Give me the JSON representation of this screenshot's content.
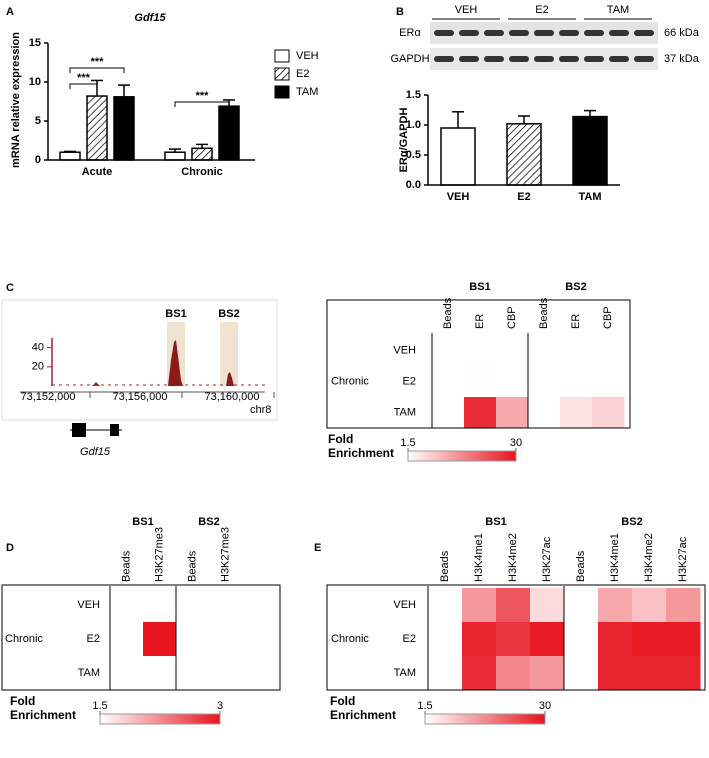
{
  "panel_labels": [
    "A",
    "B",
    "C",
    "D",
    "E"
  ],
  "chart_data": [
    {
      "type": "bar",
      "title": "Gdf15",
      "ylabel": "mRNA relative expression",
      "categories": [
        "Acute",
        "Chronic"
      ],
      "series": [
        {
          "name": "VEH",
          "color": "#ffffff",
          "values": [
            1.0,
            1.0
          ],
          "errors": [
            0.1,
            0.4
          ]
        },
        {
          "name": "E2",
          "color": "#ffffff",
          "hatch": true,
          "values": [
            8.2,
            1.5
          ],
          "errors": [
            2.0,
            0.5
          ]
        },
        {
          "name": "TAM",
          "color": "#000000",
          "values": [
            8.1,
            6.9
          ],
          "errors": [
            1.5,
            0.8
          ]
        }
      ],
      "ylim": [
        0,
        15
      ],
      "yticks": [
        0,
        5,
        10,
        15
      ],
      "annotations": [
        "***",
        "***",
        "***"
      ]
    },
    {
      "type": "bar",
      "ylabel": "ERα/GAPDH",
      "categories": [
        "VEH",
        "E2",
        "TAM"
      ],
      "values": [
        0.95,
        1.02,
        1.14
      ],
      "errors": [
        0.27,
        0.13,
        0.1
      ],
      "colors": [
        "#ffffff",
        "#ffffff",
        "#000000"
      ],
      "hatch": [
        false,
        true,
        false
      ],
      "ylim": [
        0,
        1.5
      ],
      "yticks": [
        {
          "value": 0,
          "label": "0.0"
        },
        {
          "value": 0.5,
          "label": "0.5"
        },
        {
          "value": 1,
          "label": "1.0"
        },
        {
          "value": 1.5,
          "label": "1.5"
        }
      ]
    },
    {
      "type": "heatmap",
      "groups": [
        "BS1",
        "BS2"
      ],
      "columns": [
        [
          "Beads",
          "ER",
          "CBP"
        ],
        [
          "Beads",
          "ER",
          "CBP"
        ]
      ],
      "row_group": "Chronic",
      "rows": [
        "VEH",
        "E2",
        "TAM"
      ],
      "values": [
        [
          1.5,
          1.5,
          1.5,
          1.5,
          1.5,
          1.5
        ],
        [
          1.5,
          1.7,
          1.5,
          1.5,
          1.5,
          1.5
        ],
        [
          1.5,
          27,
          12,
          1.5,
          5,
          7
        ]
      ],
      "colorbar": {
        "title": "Fold Enrichment",
        "lim": [
          1.5,
          30
        ],
        "ticks": [
          1.5,
          30
        ]
      }
    },
    {
      "type": "heatmap",
      "groups": [
        "BS1",
        "BS2"
      ],
      "columns": [
        [
          "Beads",
          "H3K27me3"
        ],
        [
          "Beads",
          "H3K27me3"
        ]
      ],
      "row_group": "Chronic",
      "rows": [
        "VEH",
        "E2",
        "TAM"
      ],
      "values": [
        [
          1.5,
          1.5,
          1.5,
          1.5
        ],
        [
          1.5,
          3,
          1.5,
          1.5
        ],
        [
          1.5,
          1.5,
          1.5,
          1.5
        ]
      ],
      "colorbar": {
        "title": "Fold Enrichment",
        "lim": [
          1.5,
          3
        ],
        "ticks": [
          1.5,
          3
        ]
      }
    },
    {
      "type": "heatmap",
      "groups": [
        "BS1",
        "BS2"
      ],
      "columns": [
        [
          "Beads",
          "H3K4me1",
          "H3K4me2",
          "H3K27ac"
        ],
        [
          "Beads",
          "H3K4me1",
          "H3K4me2",
          "H3K27ac"
        ]
      ],
      "row_group": "Chronic",
      "rows": [
        "VEH",
        "E2",
        "TAM"
      ],
      "values": [
        [
          1.5,
          14,
          22,
          6,
          1.5,
          12,
          9,
          14
        ],
        [
          1.5,
          28,
          26,
          29,
          1.5,
          28,
          29,
          29
        ],
        [
          1.5,
          27,
          16,
          14,
          1.5,
          28,
          28,
          28
        ]
      ],
      "colorbar": {
        "title": "Fold Enrichment",
        "lim": [
          1.5,
          30
        ],
        "ticks": [
          1.5,
          30
        ]
      }
    }
  ],
  "blot": {
    "groups": [
      "VEH",
      "E2",
      "TAM"
    ],
    "rows": [
      {
        "name": "ERα",
        "size": "66 kDa"
      },
      {
        "name": "GAPDH",
        "size": "37 kDa"
      }
    ]
  },
  "track": {
    "regions": [
      "BS1",
      "BS2"
    ],
    "ylim": [
      0,
      50
    ],
    "yticks": [
      20,
      40
    ],
    "positions": [
      "73,152,000",
      "73,156,000",
      "73,160,000"
    ],
    "chromosome": "chr8",
    "gene": "Gdf15"
  }
}
